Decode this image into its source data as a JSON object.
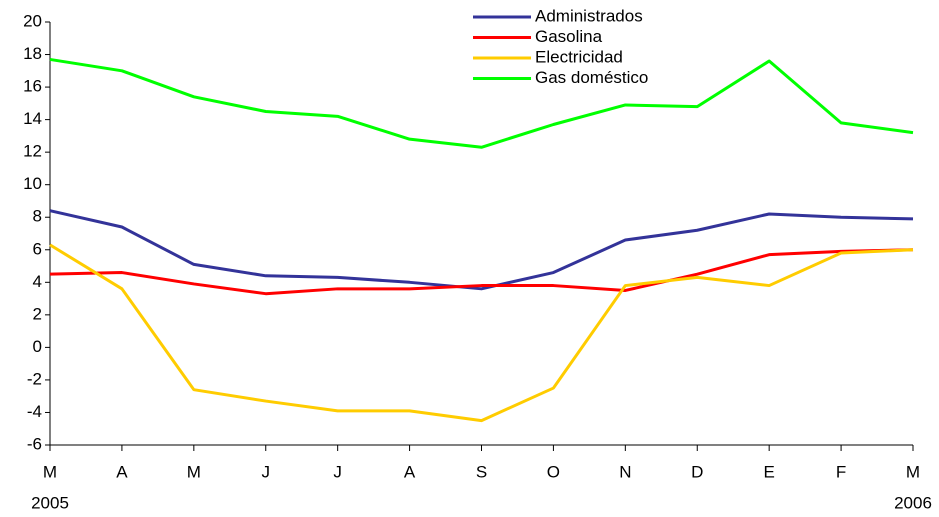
{
  "chart_data": {
    "type": "line",
    "categories": [
      "M",
      "A",
      "M",
      "J",
      "J",
      "A",
      "S",
      "O",
      "N",
      "D",
      "E",
      "F",
      "M"
    ],
    "annotations": [
      "2005",
      "2006"
    ],
    "series": [
      {
        "name": "Administrados",
        "color": "#333399",
        "values": [
          8.4,
          7.4,
          5.1,
          4.4,
          4.3,
          4.0,
          3.6,
          4.6,
          6.6,
          7.2,
          8.2,
          8.0,
          7.9
        ]
      },
      {
        "name": "Gasolina",
        "color": "#ff0000",
        "values": [
          4.5,
          4.6,
          3.9,
          3.3,
          3.6,
          3.6,
          3.8,
          3.8,
          3.5,
          4.5,
          5.7,
          5.9,
          6.0
        ]
      },
      {
        "name": "Electricidad",
        "color": "#ffcc00",
        "values": [
          6.3,
          3.6,
          -2.6,
          -3.3,
          -3.9,
          -3.9,
          -4.5,
          -2.5,
          3.8,
          4.3,
          3.8,
          5.8,
          6.0
        ]
      },
      {
        "name": "Gas doméstico",
        "color": "#00ff00",
        "values": [
          17.7,
          17.0,
          15.4,
          14.5,
          14.2,
          12.8,
          12.3,
          13.7,
          14.9,
          14.8,
          17.6,
          13.8,
          13.2
        ]
      }
    ],
    "ylim": [
      -6,
      20
    ],
    "yticks": [
      -6,
      -4,
      -2,
      0,
      2,
      4,
      6,
      8,
      10,
      12,
      14,
      16,
      18,
      20
    ],
    "grid": false,
    "legend": "top"
  }
}
